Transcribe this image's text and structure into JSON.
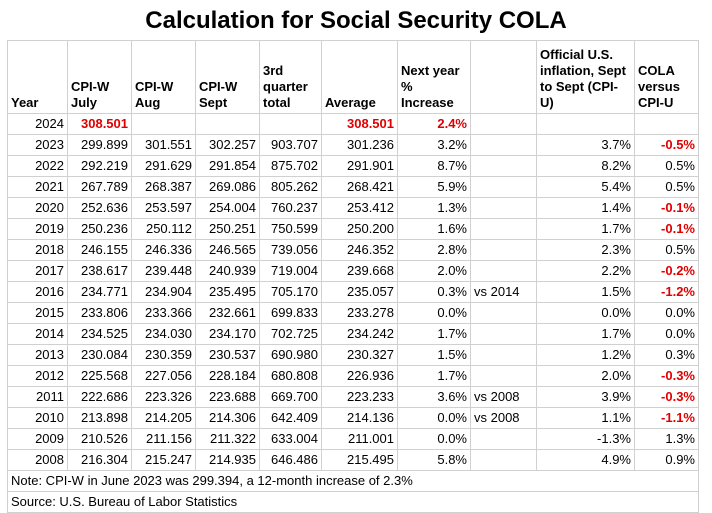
{
  "title": "Calculation for Social Security COLA",
  "headers": {
    "year": "Year",
    "july": [
      "CPI-W",
      "July"
    ],
    "aug": [
      "CPI-W",
      "Aug"
    ],
    "sept": [
      "CPI-W",
      "Sept"
    ],
    "q3": [
      "3rd",
      "quarter",
      "total"
    ],
    "avg": "Average",
    "next": [
      "Next year",
      "% Increase"
    ],
    "note": "",
    "official": [
      "Official U.S.",
      "inflation, Sept",
      "to Sept (CPI-U)"
    ],
    "cola": [
      "COLA",
      "versus",
      "CPI-U"
    ]
  },
  "rows": [
    {
      "year": "2024",
      "july": "308.501",
      "aug": "",
      "sept": "",
      "q3": "",
      "avg": "308.501",
      "next": "2.4%",
      "note": "",
      "official": "",
      "cola": "",
      "red": true
    },
    {
      "year": "2023",
      "july": "299.899",
      "aug": "301.551",
      "sept": "302.257",
      "q3": "903.707",
      "avg": "301.236",
      "next": "3.2%",
      "note": "",
      "official": "3.7%",
      "cola": "-0.5%"
    },
    {
      "year": "2022",
      "july": "292.219",
      "aug": "291.629",
      "sept": "291.854",
      "q3": "875.702",
      "avg": "291.901",
      "next": "8.7%",
      "note": "",
      "official": "8.2%",
      "cola": "0.5%"
    },
    {
      "year": "2021",
      "july": "267.789",
      "aug": "268.387",
      "sept": "269.086",
      "q3": "805.262",
      "avg": "268.421",
      "next": "5.9%",
      "note": "",
      "official": "5.4%",
      "cola": "0.5%"
    },
    {
      "year": "2020",
      "july": "252.636",
      "aug": "253.597",
      "sept": "254.004",
      "q3": "760.237",
      "avg": "253.412",
      "next": "1.3%",
      "note": "",
      "official": "1.4%",
      "cola": "-0.1%"
    },
    {
      "year": "2019",
      "july": "250.236",
      "aug": "250.112",
      "sept": "250.251",
      "q3": "750.599",
      "avg": "250.200",
      "next": "1.6%",
      "note": "",
      "official": "1.7%",
      "cola": "-0.1%"
    },
    {
      "year": "2018",
      "july": "246.155",
      "aug": "246.336",
      "sept": "246.565",
      "q3": "739.056",
      "avg": "246.352",
      "next": "2.8%",
      "note": "",
      "official": "2.3%",
      "cola": "0.5%"
    },
    {
      "year": "2017",
      "july": "238.617",
      "aug": "239.448",
      "sept": "240.939",
      "q3": "719.004",
      "avg": "239.668",
      "next": "2.0%",
      "note": "",
      "official": "2.2%",
      "cola": "-0.2%"
    },
    {
      "year": "2016",
      "july": "234.771",
      "aug": "234.904",
      "sept": "235.495",
      "q3": "705.170",
      "avg": "235.057",
      "next": "0.3%",
      "note": "vs 2014",
      "official": "1.5%",
      "cola": "-1.2%"
    },
    {
      "year": "2015",
      "july": "233.806",
      "aug": "233.366",
      "sept": "232.661",
      "q3": "699.833",
      "avg": "233.278",
      "next": "0.0%",
      "note": "",
      "official": "0.0%",
      "cola": "0.0%"
    },
    {
      "year": "2014",
      "july": "234.525",
      "aug": "234.030",
      "sept": "234.170",
      "q3": "702.725",
      "avg": "234.242",
      "next": "1.7%",
      "note": "",
      "official": "1.7%",
      "cola": "0.0%"
    },
    {
      "year": "2013",
      "july": "230.084",
      "aug": "230.359",
      "sept": "230.537",
      "q3": "690.980",
      "avg": "230.327",
      "next": "1.5%",
      "note": "",
      "official": "1.2%",
      "cola": "0.3%"
    },
    {
      "year": "2012",
      "july": "225.568",
      "aug": "227.056",
      "sept": "228.184",
      "q3": "680.808",
      "avg": "226.936",
      "next": "1.7%",
      "note": "",
      "official": "2.0%",
      "cola": "-0.3%"
    },
    {
      "year": "2011",
      "july": "222.686",
      "aug": "223.326",
      "sept": "223.688",
      "q3": "669.700",
      "avg": "223.233",
      "next": "3.6%",
      "note": "vs 2008",
      "official": "3.9%",
      "cola": "-0.3%"
    },
    {
      "year": "2010",
      "july": "213.898",
      "aug": "214.205",
      "sept": "214.306",
      "q3": "642.409",
      "avg": "214.136",
      "next": "0.0%",
      "note": "vs 2008",
      "official": "1.1%",
      "cola": "-1.1%"
    },
    {
      "year": "2009",
      "july": "210.526",
      "aug": "211.156",
      "sept": "211.322",
      "q3": "633.004",
      "avg": "211.001",
      "next": "0.0%",
      "note": "",
      "official": "-1.3%",
      "cola": "1.3%"
    },
    {
      "year": "2008",
      "july": "216.304",
      "aug": "215.247",
      "sept": "214.935",
      "q3": "646.486",
      "avg": "215.495",
      "next": "5.8%",
      "note": "",
      "official": "4.9%",
      "cola": "0.9%"
    }
  ],
  "footer": {
    "note": "Note: CPI-W in June 2023 was 299.394, a 12-month increase of 2.3%",
    "source": "Source: U.S. Bureau of Labor Statistics"
  },
  "colors": {
    "negative": "#e00000",
    "grid": "#d0d0d0"
  }
}
